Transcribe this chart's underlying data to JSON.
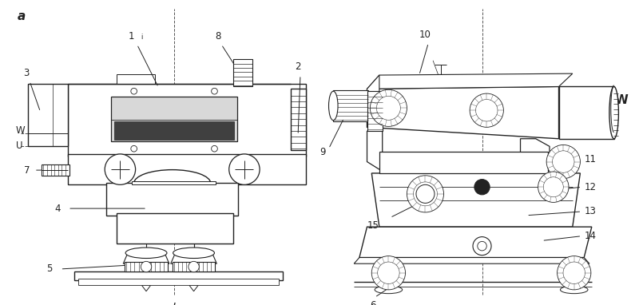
{
  "bg_color": "#f5f5f5",
  "lc": "#222222",
  "dc": "#555555",
  "fc": "#f5f5f5",
  "fc2": "#e0e0e0",
  "label_a": "a",
  "label_I": "I",
  "label_W_l": "W",
  "label_U": "U",
  "label_W_r": "W"
}
